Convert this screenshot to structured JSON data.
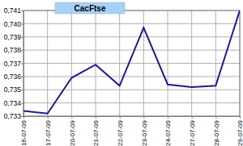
{
  "chart_data": {
    "type": "line",
    "title": "CacFtse",
    "categories": [
      "16-07-09",
      "17-07-09",
      "20-07-09",
      "21-07-09",
      "22-07-09",
      "23-07-09",
      "24-07-09",
      "27-07-09",
      "28-07-09",
      "29-07-09"
    ],
    "values": [
      0.7334,
      0.7332,
      0.7359,
      0.7369,
      0.7353,
      0.7397,
      0.7354,
      0.7352,
      0.7353,
      0.741
    ],
    "color": "#1c1c8e",
    "ylim": [
      0.733,
      0.741
    ],
    "yticks": [
      {
        "value": 0.733,
        "label": "0,733"
      },
      {
        "value": 0.734,
        "label": "0,734"
      },
      {
        "value": 0.735,
        "label": "0,735"
      },
      {
        "value": 0.736,
        "label": "0,736"
      },
      {
        "value": 0.737,
        "label": "0,737"
      },
      {
        "value": 0.738,
        "label": "0,738"
      },
      {
        "value": 0.739,
        "label": "0,739"
      },
      {
        "value": 0.74,
        "label": "0,740"
      },
      {
        "value": 0.741,
        "label": "0,741"
      }
    ],
    "grid": true
  }
}
